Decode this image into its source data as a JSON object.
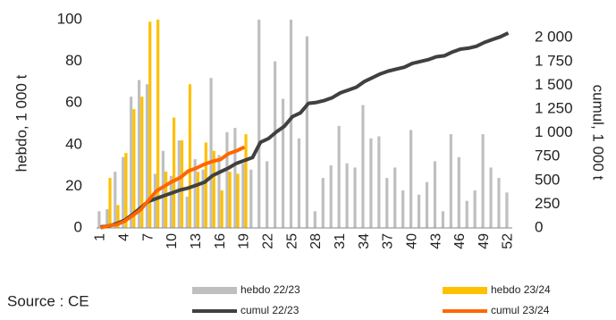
{
  "chart_data": {
    "type": "bar",
    "categories": [
      1,
      null,
      null,
      4,
      null,
      null,
      7,
      null,
      null,
      10,
      null,
      null,
      13,
      null,
      null,
      16,
      null,
      null,
      19,
      null,
      null,
      22,
      null,
      null,
      25,
      null,
      null,
      28,
      null,
      null,
      31,
      null,
      null,
      34,
      null,
      null,
      37,
      null,
      null,
      40,
      null,
      null,
      43,
      null,
      null,
      46,
      null,
      null,
      49,
      null,
      null,
      52
    ],
    "ylabel": "hebdo, 1 000 t",
    "y2label": "cumul, 1 000 t",
    "ylim": [
      0,
      100
    ],
    "yticks": [
      0,
      20,
      40,
      60,
      80,
      100
    ],
    "y2lim": [
      0,
      2190
    ],
    "y2ticks": [
      0,
      250,
      500,
      750,
      {
        "value": 1000,
        "label": "1 000"
      },
      {
        "value": 1250,
        "label": "1 250"
      },
      {
        "value": 1500,
        "label": "1 500"
      },
      {
        "value": 1750,
        "label": "1 750"
      },
      {
        "value": 2000,
        "label": "2 000"
      }
    ],
    "source": "Source : CE",
    "series": [
      {
        "name": "hebdo 22/23",
        "type": "bar",
        "color": "#bfbfbf",
        "values": [
          8,
          9,
          27,
          34,
          63,
          71,
          69,
          26,
          37,
          25,
          42,
          15,
          33,
          28,
          72,
          35,
          46,
          48,
          31,
          28,
          100,
          32,
          80,
          62,
          100,
          43,
          92,
          8,
          24,
          30,
          49,
          31,
          29,
          59,
          43,
          44,
          24,
          29,
          18,
          47,
          16,
          22,
          32,
          8,
          45,
          34,
          13,
          18,
          45,
          29,
          24,
          17
        ]
      },
      {
        "name": "hebdo 23/24",
        "type": "bar",
        "color": "#ffc000",
        "values": [
          0,
          24,
          11,
          36,
          57,
          63,
          99,
          100,
          27,
          53,
          42,
          69,
          27,
          41,
          37,
          18,
          27,
          26,
          45,
          null,
          null,
          null,
          null,
          null,
          null,
          null,
          null,
          null,
          null,
          null,
          null,
          null,
          null,
          null,
          null,
          null,
          null,
          null,
          null,
          null,
          null,
          null,
          null,
          null,
          null,
          null,
          null,
          null,
          null,
          null,
          null,
          null
        ]
      },
      {
        "name": "cumul 22/23",
        "type": "line",
        "axis": "y2",
        "color": "#404040",
        "values": [
          10,
          20,
          45,
          80,
          140,
          210,
          280,
          310,
          340,
          370,
          400,
          420,
          450,
          480,
          550,
          590,
          630,
          680,
          710,
          740,
          900,
          940,
          1010,
          1070,
          1170,
          1210,
          1310,
          1320,
          1340,
          1370,
          1420,
          1450,
          1480,
          1540,
          1580,
          1620,
          1650,
          1670,
          1690,
          1730,
          1750,
          1770,
          1800,
          1810,
          1850,
          1880,
          1890,
          1910,
          1950,
          1980,
          2010,
          2050
        ]
      },
      {
        "name": "cumul 23/24",
        "type": "line",
        "axis": "y2",
        "color": "#ff6600",
        "values": [
          0,
          24,
          35,
          71,
          128,
          191,
          290,
          390,
          440,
          490,
          530,
          600,
          630,
          670,
          700,
          720,
          780,
          810,
          850,
          null,
          null,
          null,
          null,
          null,
          null,
          null,
          null,
          null,
          null,
          null,
          null,
          null,
          null,
          null,
          null,
          null,
          null,
          null,
          null,
          null,
          null,
          null,
          null,
          null,
          null,
          null,
          null,
          null,
          null,
          null,
          null,
          null
        ]
      }
    ]
  }
}
